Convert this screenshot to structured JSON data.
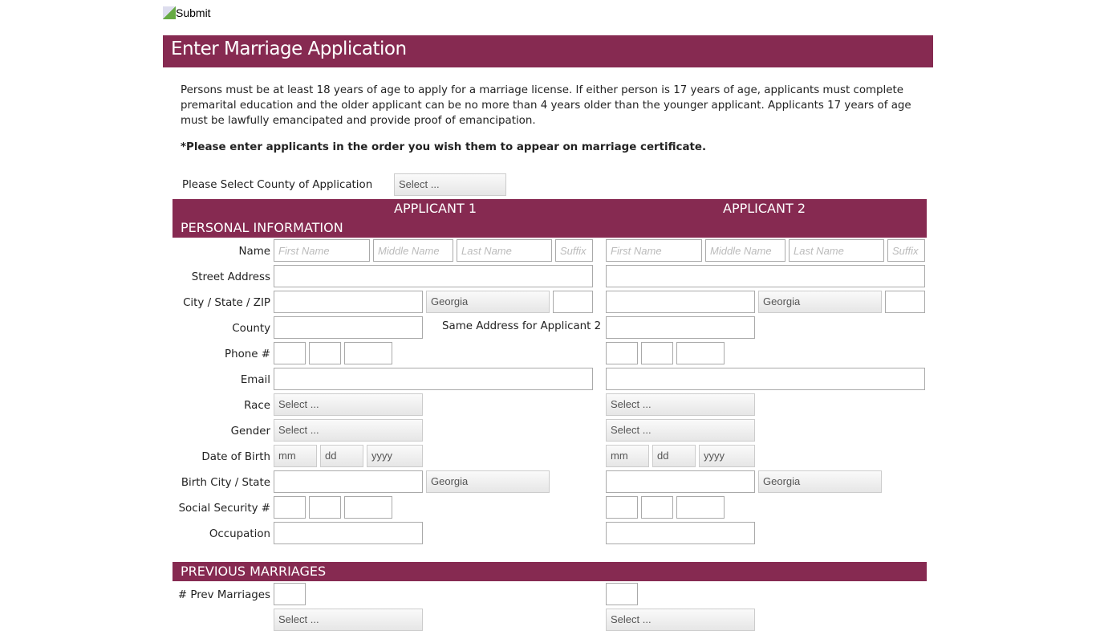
{
  "submit_alt": "Submit",
  "title": "Enter Marriage Application",
  "intro": "Persons must be at least 18 years of age to apply for a marriage license. If either person is 17 years of age, applicants must complete premarital education and the older applicant can be no more than 4 years older than the younger applicant. Applicants 17 years of age must be lawfully emancipated and provide proof of emancipation.",
  "note": "*Please enter applicants in the order you wish them to appear on marriage certificate.",
  "county_of_application": {
    "label": "Please Select County of Application",
    "value": "Select ..."
  },
  "applicant_headers": [
    "APPLICANT 1",
    "APPLICANT 2"
  ],
  "personal_section": "PERSONAL INFORMATION",
  "same_address_label": "Same Address for Applicant 2",
  "rows": [
    {
      "label": "Name",
      "fields": [
        {
          "placeholder": "First Name"
        },
        {
          "placeholder": "Middle Name"
        },
        {
          "placeholder": "Last Name"
        },
        {
          "placeholder": "Suffix"
        }
      ]
    },
    {
      "label": "Street Address",
      "fields": [
        {
          "placeholder": ""
        }
      ]
    },
    {
      "label": "City / State / ZIP",
      "fields": [
        {
          "placeholder": ""
        },
        {
          "select": "Georgia"
        },
        {
          "placeholder": ""
        }
      ]
    },
    {
      "label": "County",
      "fields": [
        {
          "placeholder": ""
        }
      ]
    },
    {
      "label": "Phone #",
      "fields": [
        {
          "placeholder": ""
        },
        {
          "placeholder": ""
        },
        {
          "placeholder": ""
        }
      ]
    },
    {
      "label": "Email",
      "fields": [
        {
          "placeholder": ""
        }
      ]
    },
    {
      "label": "Race",
      "fields": [
        {
          "select": "Select ..."
        }
      ]
    },
    {
      "label": "Gender",
      "fields": [
        {
          "select": "Select ..."
        }
      ]
    },
    {
      "label": "Date of Birth",
      "fields": [
        {
          "select": "mm"
        },
        {
          "select": "dd"
        },
        {
          "select": "yyyy"
        }
      ]
    },
    {
      "label": "Birth City / State",
      "fields": [
        {
          "placeholder": ""
        },
        {
          "select": "Georgia"
        }
      ]
    },
    {
      "label": "Social Security #",
      "fields": [
        {
          "placeholder": ""
        },
        {
          "placeholder": ""
        },
        {
          "placeholder": ""
        }
      ]
    },
    {
      "label": "Occupation",
      "fields": [
        {
          "placeholder": ""
        }
      ]
    }
  ],
  "previous_section": "PREVIOUS MARRIAGES",
  "prev_rows": [
    {
      "label": "# Prev Marriages",
      "fields": [
        {
          "placeholder": ""
        }
      ]
    },
    {
      "label": "",
      "fields": [
        {
          "select": "Select ..."
        }
      ]
    }
  ],
  "colors": {
    "brand": "#862a51"
  }
}
